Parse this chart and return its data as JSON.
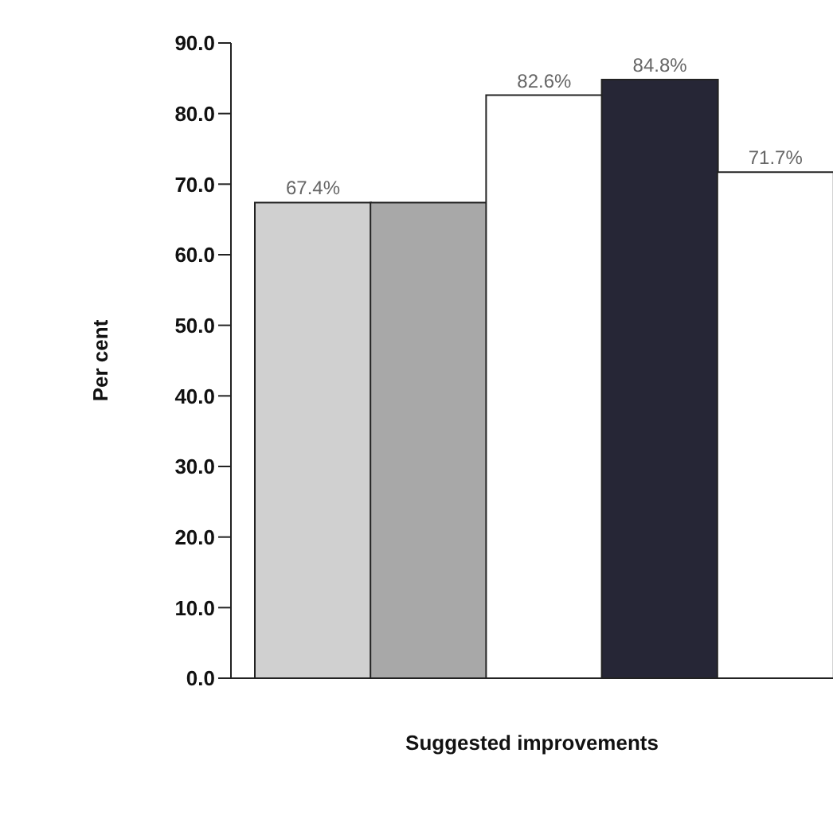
{
  "chart_data": {
    "type": "bar",
    "xlabel": "Suggested improvements",
    "ylabel": "Per cent",
    "categories": [
      null,
      null,
      null,
      null,
      null
    ],
    "values": [
      67.4,
      67.4,
      82.6,
      84.8,
      71.7
    ],
    "colors": [
      "#d0d0d0",
      "#a8a8a8",
      "#ffffff",
      "#262636",
      "#ffffff"
    ],
    "value_labels": [
      "67.4%",
      null,
      "82.6%",
      "84.8%",
      "71.7%"
    ],
    "ylim": [
      0,
      90
    ],
    "yticks": [
      {
        "value": 0,
        "label": "0.0"
      },
      {
        "value": 10,
        "label": "10.0"
      },
      {
        "value": 20,
        "label": "20.0"
      },
      {
        "value": 30,
        "label": "30.0"
      },
      {
        "value": 40,
        "label": "40.0"
      },
      {
        "value": 50,
        "label": "50.0"
      },
      {
        "value": 60,
        "label": "60.0"
      },
      {
        "value": 70,
        "label": "70.0"
      },
      {
        "value": 80,
        "label": "80.0"
      },
      {
        "value": 90,
        "label": "90.0"
      }
    ],
    "grid": false
  }
}
